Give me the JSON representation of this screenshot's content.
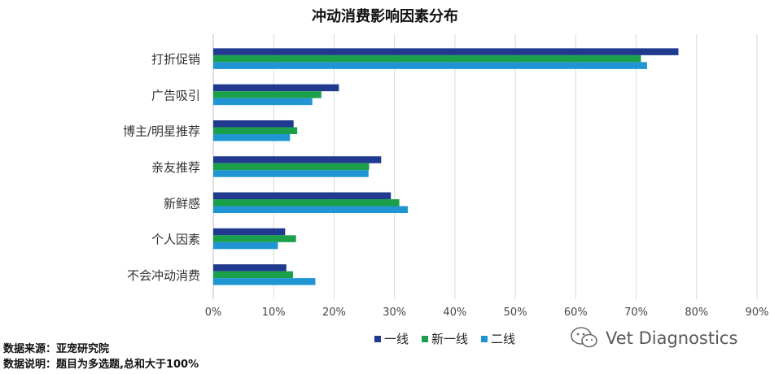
{
  "chart_data": {
    "type": "bar",
    "orientation": "horizontal",
    "title": "冲动消费影响因素分布",
    "categories": [
      "打折促销",
      "广告吸引",
      "博主/明星推荐",
      "亲友推荐",
      "新鲜感",
      "个人因素",
      "不会冲动消费"
    ],
    "series": [
      {
        "name": "一线",
        "color": "#1f3a8f",
        "values": [
          77,
          20.8,
          13.3,
          27.8,
          29.4,
          11.9,
          12.1
        ]
      },
      {
        "name": "新一线",
        "color": "#1aa04a",
        "values": [
          70.8,
          17.9,
          13.9,
          25.8,
          30.8,
          13.7,
          13.2
        ]
      },
      {
        "name": "二线",
        "color": "#1f95d3",
        "values": [
          71.8,
          16.4,
          12.7,
          25.7,
          32.2,
          10.7,
          16.9
        ]
      }
    ],
    "xlim": [
      0,
      90
    ],
    "xticks": [
      0,
      10,
      20,
      30,
      40,
      50,
      60,
      70,
      80,
      90
    ],
    "tick_suffix": "%",
    "grid": true,
    "legend_position": "bottom"
  },
  "watermark": "Vet Diagnostics",
  "source": {
    "line1": "数据来源：亚宠研究院",
    "line2": "数据说明：题目为多选题,总和大于100%"
  }
}
